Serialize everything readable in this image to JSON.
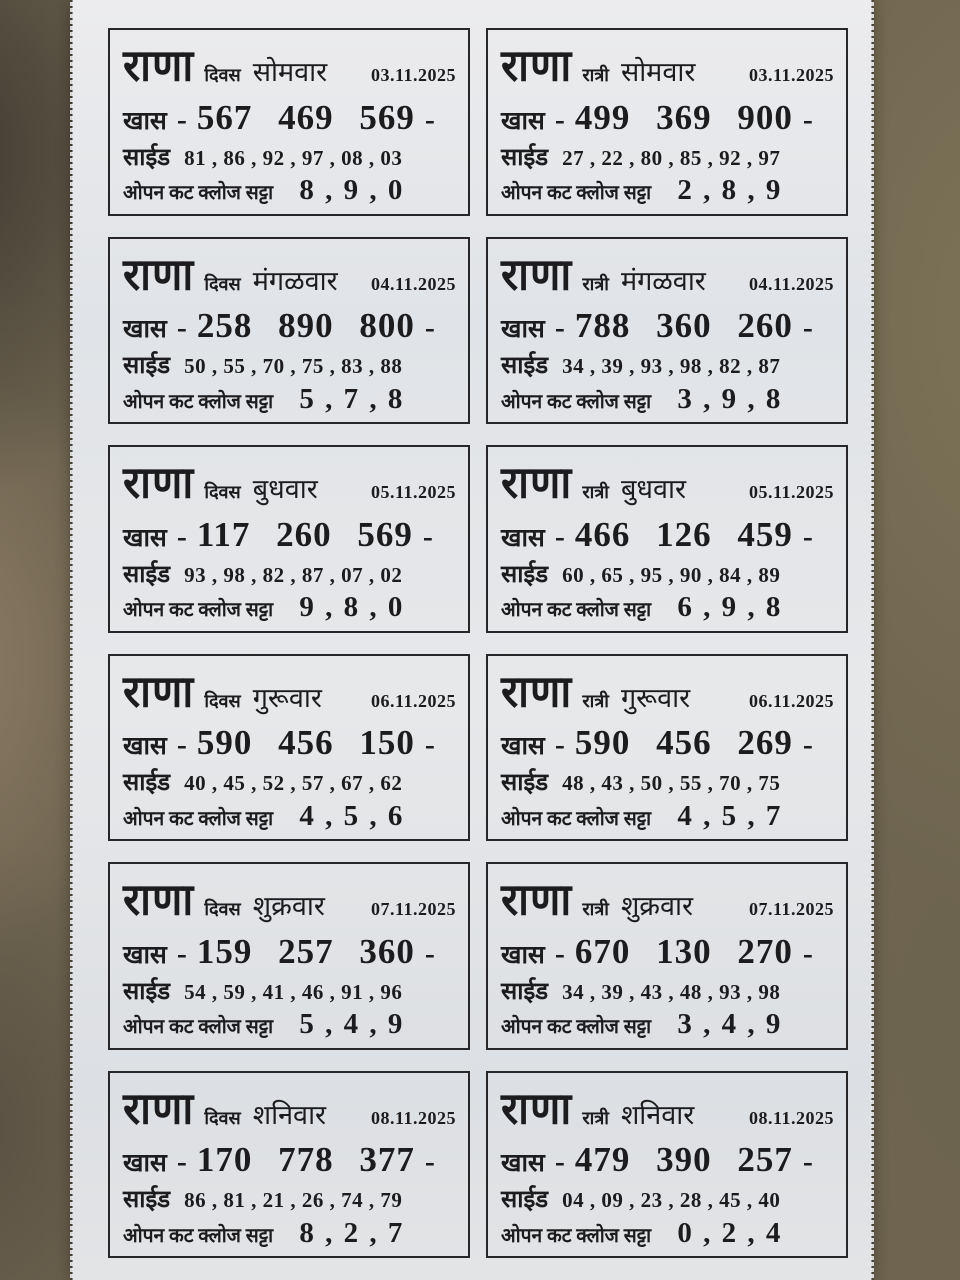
{
  "colors": {
    "background": "#6e6450",
    "paper": "#e6e7e9",
    "ink": "#1c1c1f",
    "border": "#27272a"
  },
  "labels": {
    "brand": "राणा",
    "khas": "खास",
    "dash": "-",
    "side": "साईड",
    "open_cut_close_satta": "ओपन कट क्लोज सट्टा"
  },
  "cards": [
    {
      "session": "दिवस",
      "day": "सोमवार",
      "date": "03.11.2025",
      "khas": "567 469 569",
      "side": "81 , 86 , 92 , 97 , 08 , 03",
      "satta": "8 , 9 , 0"
    },
    {
      "session": "रात्री",
      "day": "सोमवार",
      "date": "03.11.2025",
      "khas": "499 369 900",
      "side": "27 , 22 , 80 , 85 , 92 , 97",
      "satta": "2 , 8 , 9"
    },
    {
      "session": "दिवस",
      "day": "मंगळवार",
      "date": "04.11.2025",
      "khas": "258 890 800",
      "side": "50 , 55 , 70 , 75 , 83 , 88",
      "satta": "5 , 7 , 8"
    },
    {
      "session": "रात्री",
      "day": "मंगळवार",
      "date": "04.11.2025",
      "khas": "788 360 260",
      "side": "34 , 39 , 93 , 98 , 82 , 87",
      "satta": "3 , 9 , 8"
    },
    {
      "session": "दिवस",
      "day": "बुधवार",
      "date": "05.11.2025",
      "khas": "117 260 569",
      "side": "93 , 98 , 82 , 87 , 07 , 02",
      "satta": "9 , 8 , 0"
    },
    {
      "session": "रात्री",
      "day": "बुधवार",
      "date": "05.11.2025",
      "khas": "466 126 459",
      "side": "60 , 65 , 95 , 90 , 84 , 89",
      "satta": "6 , 9 , 8"
    },
    {
      "session": "दिवस",
      "day": "गुरूवार",
      "date": "06.11.2025",
      "khas": "590 456 150",
      "side": "40 , 45 , 52 , 57 , 67 , 62",
      "satta": "4 , 5 , 6"
    },
    {
      "session": "रात्री",
      "day": "गुरूवार",
      "date": "06.11.2025",
      "khas": "590 456 269",
      "side": "48 , 43 , 50 , 55 , 70 , 75",
      "satta": "4 , 5 , 7"
    },
    {
      "session": "दिवस",
      "day": "शुक्रवार",
      "date": "07.11.2025",
      "khas": "159 257 360",
      "side": "54 , 59 , 41 , 46 , 91 , 96",
      "satta": "5 , 4 , 9"
    },
    {
      "session": "रात्री",
      "day": "शुक्रवार",
      "date": "07.11.2025",
      "khas": "670 130 270",
      "side": "34 , 39 , 43 , 48 , 93 , 98",
      "satta": "3 , 4 , 9"
    },
    {
      "session": "दिवस",
      "day": "शनिवार",
      "date": "08.11.2025",
      "khas": "170 778 377",
      "side": "86 , 81 , 21 , 26 , 74 , 79",
      "satta": "8 , 2 , 7"
    },
    {
      "session": "रात्री",
      "day": "शनिवार",
      "date": "08.11.2025",
      "khas": "479 390 257",
      "side": "04 , 09 , 23 , 28 , 45 , 40",
      "satta": "0 , 2 , 4"
    }
  ]
}
